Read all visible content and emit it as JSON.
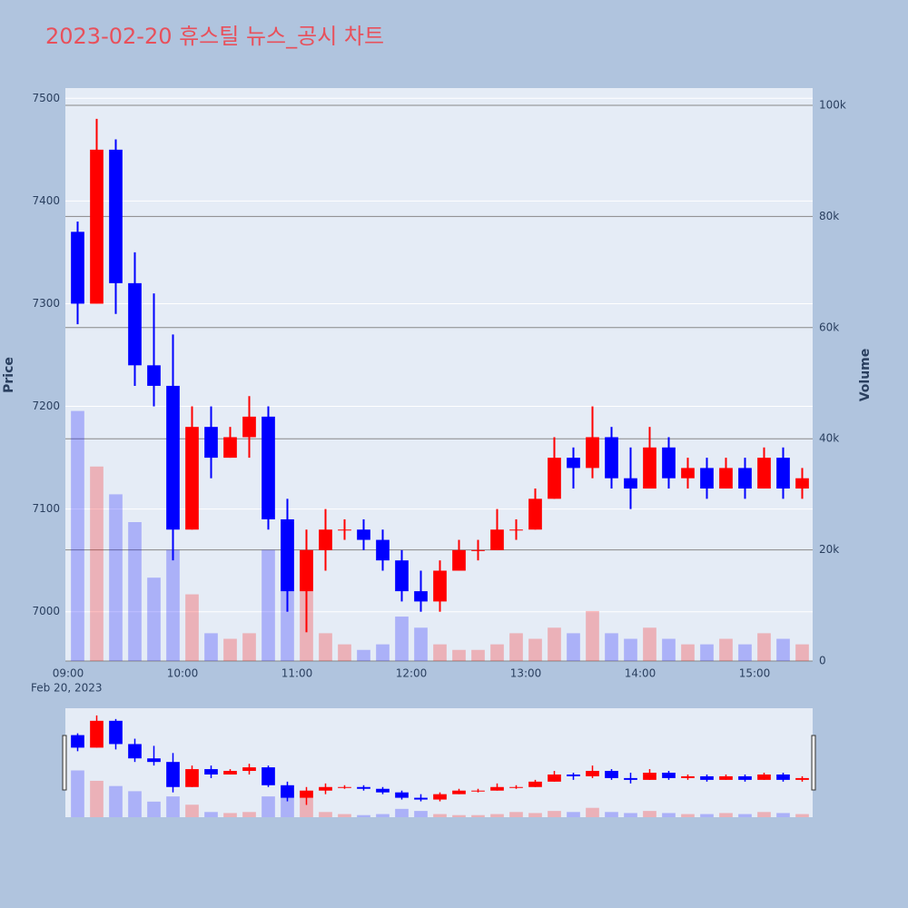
{
  "chart_data": {
    "type": "candlestick",
    "title": "2023-02-20 휴스틸 뉴스_공시 차트",
    "ylabel": "Price",
    "y2label": "Volume",
    "x_date_label": "Feb 20, 2023",
    "up_color": "#ff0000",
    "down_color": "#0000ff",
    "x": [
      "09:00",
      "09:10",
      "09:20",
      "09:30",
      "09:40",
      "09:50",
      "10:00",
      "10:10",
      "10:20",
      "10:30",
      "10:40",
      "10:50",
      "11:00",
      "11:10",
      "11:20",
      "11:30",
      "11:40",
      "11:50",
      "12:00",
      "12:10",
      "12:20",
      "12:30",
      "12:40",
      "12:50",
      "13:00",
      "13:10",
      "13:20",
      "13:30",
      "13:40",
      "13:50",
      "14:00",
      "14:10",
      "14:20",
      "14:30",
      "14:40",
      "14:50",
      "15:00",
      "15:10",
      "15:20"
    ],
    "open": [
      7370,
      7300,
      7450,
      7320,
      7240,
      7220,
      7080,
      7180,
      7150,
      7170,
      7190,
      7090,
      7020,
      7060,
      7080,
      7080,
      7070,
      7050,
      7020,
      7010,
      7040,
      7060,
      7060,
      7080,
      7080,
      7110,
      7150,
      7140,
      7170,
      7130,
      7120,
      7160,
      7130,
      7140,
      7120,
      7140,
      7120,
      7150,
      7120
    ],
    "high": [
      7380,
      7480,
      7460,
      7350,
      7310,
      7270,
      7200,
      7200,
      7180,
      7210,
      7200,
      7110,
      7080,
      7100,
      7090,
      7090,
      7080,
      7060,
      7040,
      7050,
      7070,
      7070,
      7100,
      7090,
      7120,
      7170,
      7160,
      7200,
      7180,
      7160,
      7180,
      7170,
      7150,
      7150,
      7150,
      7150,
      7160,
      7160,
      7140
    ],
    "low": [
      7280,
      7300,
      7290,
      7220,
      7200,
      7050,
      7080,
      7130,
      7150,
      7150,
      7080,
      7000,
      6980,
      7040,
      7070,
      7060,
      7040,
      7010,
      7000,
      7000,
      7040,
      7050,
      7060,
      7070,
      7080,
      7110,
      7120,
      7130,
      7120,
      7100,
      7120,
      7120,
      7120,
      7110,
      7120,
      7110,
      7120,
      7110,
      7110
    ],
    "close": [
      7300,
      7450,
      7320,
      7240,
      7220,
      7080,
      7180,
      7150,
      7170,
      7190,
      7090,
      7020,
      7060,
      7080,
      7080,
      7070,
      7050,
      7020,
      7010,
      7040,
      7060,
      7060,
      7080,
      7080,
      7110,
      7150,
      7140,
      7170,
      7130,
      7120,
      7160,
      7130,
      7140,
      7120,
      7140,
      7120,
      7150,
      7120,
      7130
    ],
    "volume": [
      45000,
      35000,
      30000,
      25000,
      15000,
      20000,
      12000,
      5000,
      4000,
      5000,
      20000,
      25000,
      20000,
      5000,
      3000,
      2000,
      3000,
      8000,
      6000,
      3000,
      2000,
      2000,
      3000,
      5000,
      4000,
      6000,
      5000,
      9000,
      5000,
      4000,
      6000,
      4000,
      3000,
      3000,
      4000,
      3000,
      5000,
      4000,
      3000
    ],
    "ylim": [
      6952,
      7510
    ],
    "yticks": [
      7000,
      7100,
      7200,
      7300,
      7400,
      7500
    ],
    "y2lim": [
      0,
      103100
    ],
    "y2ticks": [
      0,
      {
        "value": 20000,
        "label": "20k"
      },
      {
        "value": 40000,
        "label": "40k"
      },
      {
        "value": 60000,
        "label": "60k"
      },
      {
        "value": 80000,
        "label": "80k"
      },
      {
        "value": 100000,
        "label": "100k"
      }
    ],
    "xticks": [
      "09:00",
      "10:00",
      "11:00",
      "12:00",
      "13:00",
      "14:00",
      "15:00"
    ]
  }
}
